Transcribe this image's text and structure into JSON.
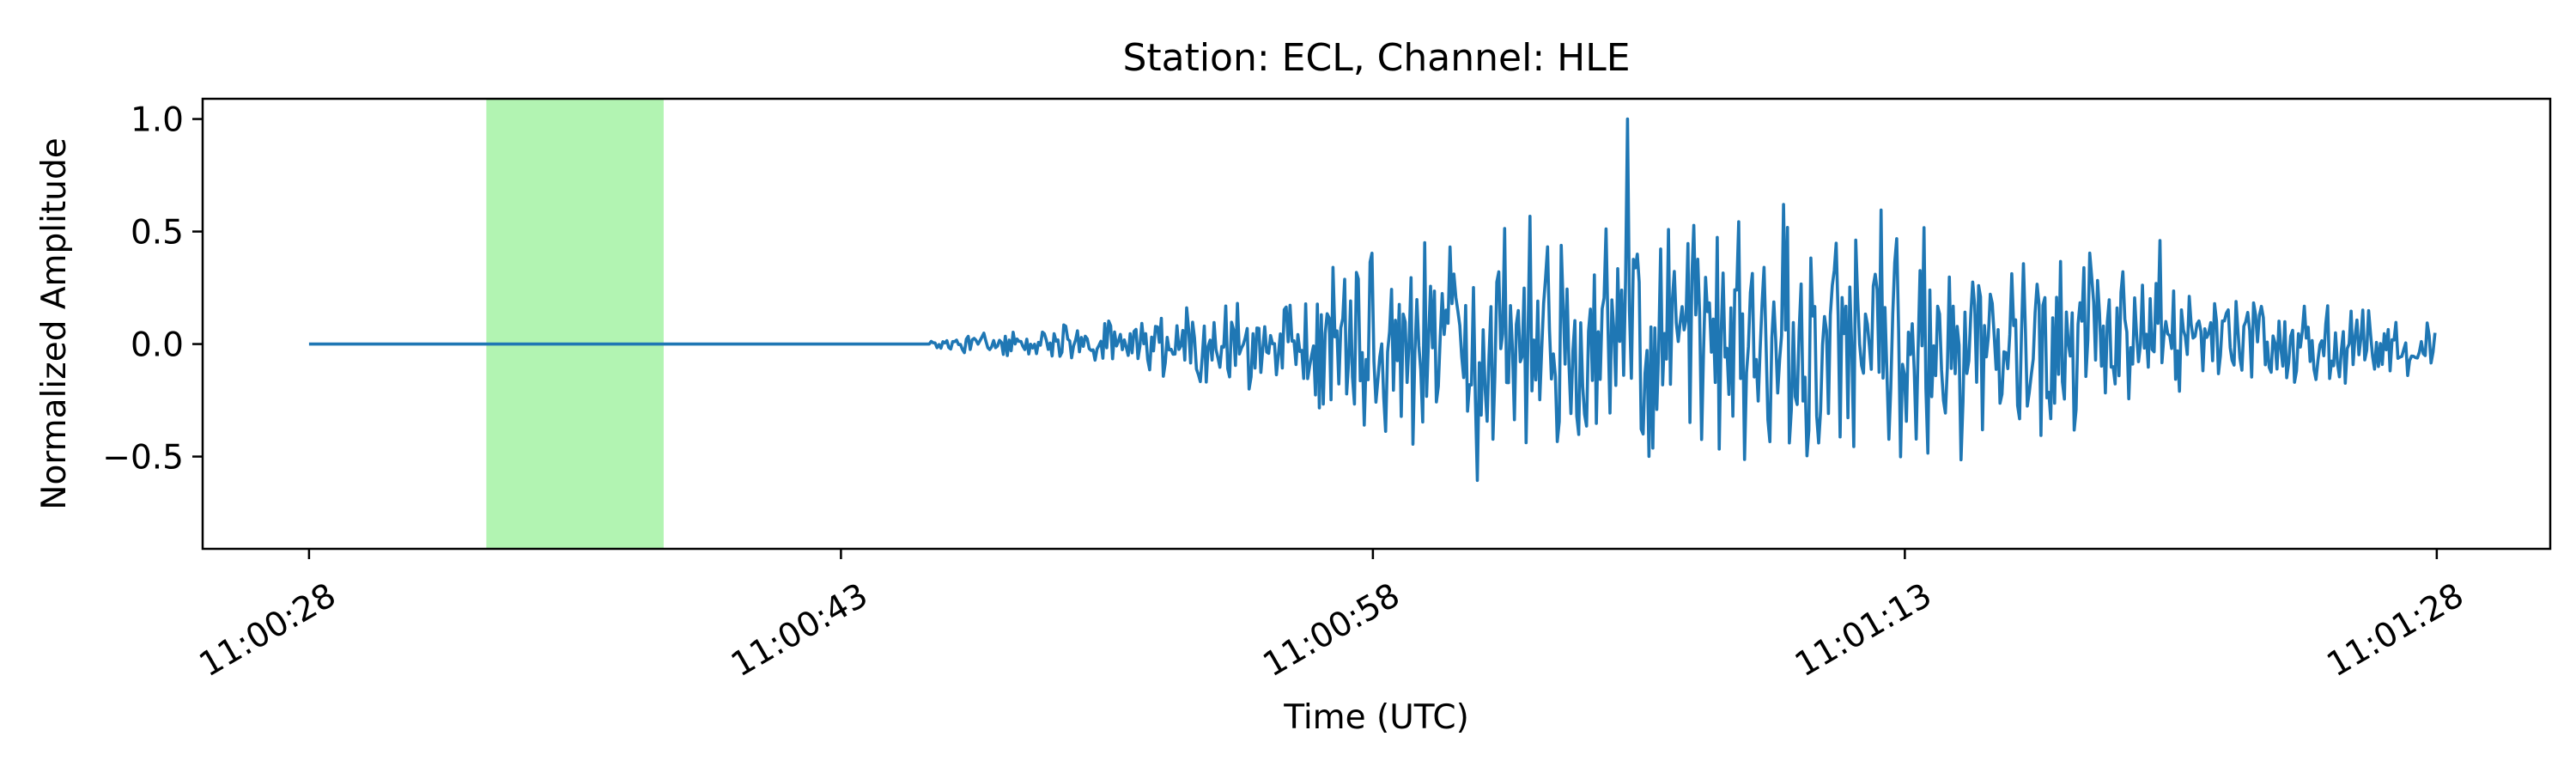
{
  "chart_data": {
    "type": "line",
    "title": "Station: ECL, Channel: HLE",
    "xlabel": "Time (UTC)",
    "ylabel": "Normalized Amplitude",
    "x_start": "11:00:25",
    "x_end": "11:01:31",
    "xlim": [
      -3.0,
      63.2
    ],
    "ylim": [
      -0.91,
      1.09
    ],
    "x_ticks": [
      {
        "value": 0,
        "label": "11:00:28"
      },
      {
        "value": 15,
        "label": "11:00:43"
      },
      {
        "value": 30,
        "label": "11:00:58"
      },
      {
        "value": 45,
        "label": "11:01:13"
      },
      {
        "value": 60,
        "label": "11:01:28"
      }
    ],
    "y_ticks": [
      {
        "value": 1.0,
        "label": "1.0"
      },
      {
        "value": 0.5,
        "label": "0.5"
      },
      {
        "value": 0.0,
        "label": "0.0"
      },
      {
        "value": -0.5,
        "label": "−0.5"
      }
    ],
    "highlight_span": {
      "x0": 5.0,
      "x1": 10.0,
      "color": "#b2f4b2"
    },
    "series": [
      {
        "color": "#1f77b4",
        "x_start": 0,
        "x_end": 60
      }
    ],
    "grid": false,
    "legend": "none"
  }
}
